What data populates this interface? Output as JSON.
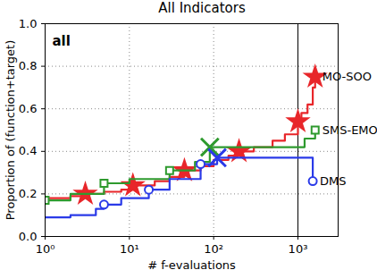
{
  "chart_data": {
    "type": "line",
    "title": "All Indicators",
    "xlabel": "# f-evaluations",
    "ylabel": "Proportion of (function+target)",
    "annotations": [
      "all"
    ],
    "log": "x",
    "grid": true,
    "vline": 1000,
    "xlim": [
      1,
      3000
    ],
    "xticks": [
      {
        "value": 1,
        "label": "10⁰"
      },
      {
        "value": 10,
        "label": "10¹"
      },
      {
        "value": 100,
        "label": "10²"
      },
      {
        "value": 1000,
        "label": "10³"
      }
    ],
    "ylim": [
      0,
      1
    ],
    "yticks": [
      {
        "value": 0,
        "label": "0.0"
      },
      0.2,
      0.4,
      0.6,
      0.8,
      {
        "value": 1,
        "label": "1.0"
      }
    ],
    "series": [
      {
        "name": "MO-SOO",
        "color": "#e8262a",
        "marker": "star",
        "x": [
          1,
          2,
          3,
          5,
          8,
          11,
          20,
          30,
          45,
          70,
          100,
          150,
          200,
          300,
          500,
          700,
          1000,
          1100,
          1300,
          1500,
          1600
        ],
        "values": [
          0.18,
          0.19,
          0.2,
          0.21,
          0.22,
          0.24,
          0.26,
          0.28,
          0.31,
          0.33,
          0.36,
          0.38,
          0.4,
          0.42,
          0.45,
          0.48,
          0.54,
          0.58,
          0.62,
          0.7,
          0.75
        ],
        "marker_x": [
          3,
          11,
          45,
          200,
          1000,
          1600
        ]
      },
      {
        "name": "SMS-EMOA",
        "color": "#2e9a2e",
        "marker": "square",
        "x": [
          1,
          2,
          5,
          10,
          30,
          60,
          90,
          1000,
          1200,
          1600
        ],
        "values": [
          0.17,
          0.2,
          0.25,
          0.27,
          0.31,
          0.35,
          0.42,
          0.42,
          0.46,
          0.5
        ],
        "marker_x": [
          1,
          5,
          30,
          1600
        ],
        "cross": [
          90,
          0.42
        ]
      },
      {
        "name": "DMS",
        "color": "#2a3ae8",
        "marker": "circle",
        "x": [
          1,
          2,
          4,
          5,
          8,
          17,
          30,
          70,
          110,
          1000,
          1500
        ],
        "values": [
          0.09,
          0.1,
          0.13,
          0.15,
          0.18,
          0.22,
          0.27,
          0.34,
          0.37,
          0.37,
          0.26
        ],
        "marker_x": [
          5,
          17,
          70,
          1500
        ],
        "cross": [
          110,
          0.37
        ]
      }
    ]
  }
}
